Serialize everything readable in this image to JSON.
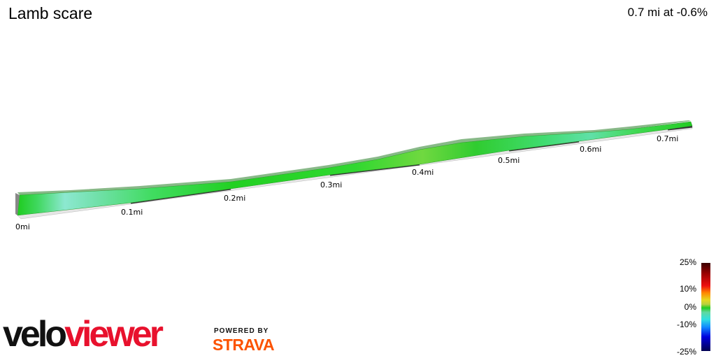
{
  "header": {
    "title": "Lamb scare",
    "summary": "0.7 mi at -0.6%"
  },
  "chart_data": {
    "type": "area",
    "title": "Lamb scare",
    "x_unit": "mi",
    "x_ticks": [
      "0mi",
      "0.1mi",
      "0.2mi",
      "0.3mi",
      "0.4mi",
      "0.5mi",
      "0.6mi",
      "0.7mi"
    ],
    "distance_mi": 0.7,
    "average_grade_pct": -0.6,
    "color_scale": {
      "labels": [
        "25%",
        "10%",
        "0%",
        "-10%",
        "-25%"
      ],
      "range_pct": [
        -25,
        25
      ],
      "colors": {
        "steep_up": "#990000",
        "up": "#ff8800",
        "flat": "#22cc22",
        "down": "#30e0e0",
        "steep_down": "#0000dd"
      }
    }
  },
  "branding": {
    "logo_part1": "velo",
    "logo_part2": "viewer",
    "powered_by": "POWERED BY",
    "strava": "STRAVA"
  }
}
